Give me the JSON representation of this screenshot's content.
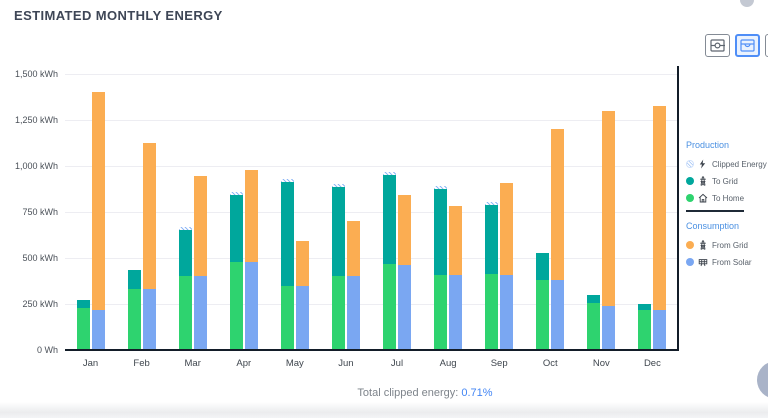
{
  "header": {
    "title": "ESTIMATED MONTHLY ENERGY"
  },
  "toolbar": {
    "buttons": [
      {
        "name": "donut-view",
        "selected": false
      },
      {
        "name": "bar-view",
        "selected": true
      },
      {
        "name": "line-view",
        "selected": false
      }
    ]
  },
  "chart_data": {
    "type": "bar",
    "title": "ESTIMATED MONTHLY ENERGY",
    "unit": "kWh",
    "categories": [
      "Jan",
      "Feb",
      "Mar",
      "Apr",
      "May",
      "Jun",
      "Jul",
      "Aug",
      "Sep",
      "Oct",
      "Nov",
      "Dec"
    ],
    "yticks": [
      "1,500 kWh",
      "1,250 kWh",
      "1,000 kWh",
      "750 kWh",
      "500 kWh",
      "250 kWh",
      "0 Wh"
    ],
    "ymax": 1500,
    "grid": true,
    "legend_position": "right",
    "stacks": [
      "production",
      "consumption"
    ],
    "series": [
      {
        "name": "To Home",
        "stack": "production",
        "color": "#2ed36f",
        "values": [
          230,
          330,
          400,
          480,
          350,
          400,
          465,
          410,
          415,
          380,
          255,
          220
        ]
      },
      {
        "name": "To Grid",
        "stack": "production",
        "color": "#00a79c",
        "values": [
          40,
          105,
          255,
          360,
          565,
          485,
          485,
          465,
          375,
          150,
          45,
          30
        ]
      },
      {
        "name": "Clipped Energy",
        "stack": "production",
        "color": "hatch",
        "values": [
          0,
          0,
          6,
          9,
          8,
          7,
          8,
          8,
          7,
          0,
          0,
          0
        ]
      },
      {
        "name": "From Solar",
        "stack": "consumption",
        "color": "#7aa7f2",
        "values": [
          220,
          330,
          400,
          480,
          350,
          400,
          460,
          410,
          410,
          380,
          240,
          220
        ]
      },
      {
        "name": "From Grid",
        "stack": "consumption",
        "color": "#fbad52",
        "values": [
          1180,
          795,
          545,
          500,
          245,
          300,
          380,
          370,
          495,
          820,
          1060,
          1105
        ]
      }
    ]
  },
  "legend": {
    "production_title": "Production",
    "consumption_title": "Consumption",
    "production_items": [
      {
        "label": "Clipped Energy",
        "swatch": "hatch",
        "icon": "bolt"
      },
      {
        "label": "To Grid",
        "swatch": "#00a79c",
        "icon": "tower"
      },
      {
        "label": "To Home",
        "swatch": "#2ed36f",
        "icon": "house"
      }
    ],
    "consumption_items": [
      {
        "label": "From Grid",
        "swatch": "#fbad52",
        "icon": "tower"
      },
      {
        "label": "From Solar",
        "swatch": "#7aa7f2",
        "icon": "solar-panel"
      }
    ]
  },
  "footer": {
    "label": "Total clipped energy:",
    "value": "0.71%"
  }
}
